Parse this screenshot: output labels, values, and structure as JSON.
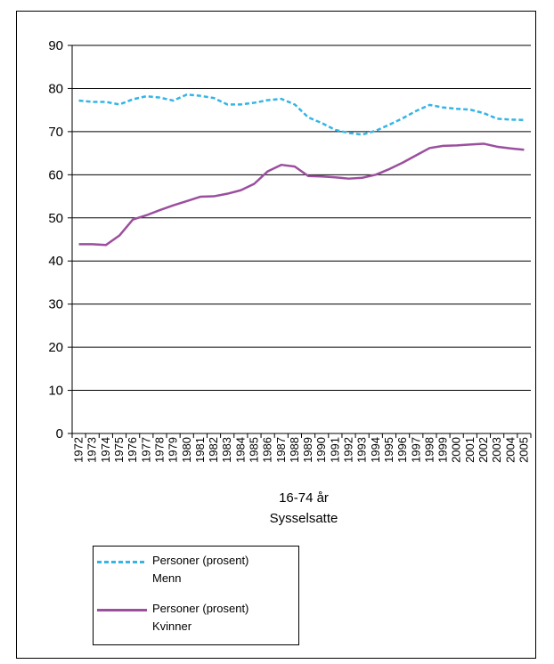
{
  "chart_data": {
    "type": "line",
    "xlabel_lines": [
      "16-74 år",
      "Sysselsatte"
    ],
    "ylim": [
      0,
      90
    ],
    "yticks": [
      0,
      10,
      20,
      30,
      40,
      50,
      60,
      70,
      80,
      90
    ],
    "grid": true,
    "legend_position": "bottom-left",
    "x": [
      "1972",
      "1973",
      "1974",
      "1975",
      "1976",
      "1977",
      "1978",
      "1979",
      "1980",
      "1981",
      "1982",
      "1983",
      "1984",
      "1985",
      "1986",
      "1987",
      "1988",
      "1989",
      "1990",
      "1991",
      "1992",
      "1993",
      "1994",
      "1995",
      "1996",
      "1997",
      "1998",
      "1999",
      "2000",
      "2001",
      "2002",
      "2003",
      "2004",
      "2005"
    ],
    "series": [
      {
        "name": "Personer (prosent)\nMenn",
        "color": "#33b5e5",
        "style": "dashed",
        "values": [
          77.2,
          76.9,
          76.9,
          76.3,
          77.5,
          78.2,
          77.9,
          77.2,
          78.6,
          78.3,
          77.8,
          76.3,
          76.3,
          76.7,
          77.3,
          77.6,
          76.3,
          73.3,
          72.0,
          70.4,
          69.7,
          69.3,
          70.2,
          71.6,
          73.1,
          74.8,
          76.2,
          75.6,
          75.3,
          75.1,
          74.3,
          73.0,
          72.8,
          72.7
        ]
      },
      {
        "name": "Personer (prosent)\nKvinner",
        "color": "#9b4f9e",
        "style": "solid",
        "values": [
          43.9,
          43.9,
          43.7,
          45.9,
          49.6,
          50.6,
          51.8,
          52.9,
          53.9,
          54.9,
          55.0,
          55.6,
          56.4,
          57.9,
          60.8,
          62.3,
          61.9,
          59.7,
          59.6,
          59.4,
          59.1,
          59.3,
          60.0,
          61.3,
          62.8,
          64.5,
          66.2,
          66.7,
          66.8,
          67.0,
          67.2,
          66.5,
          66.1,
          65.8
        ]
      }
    ]
  }
}
